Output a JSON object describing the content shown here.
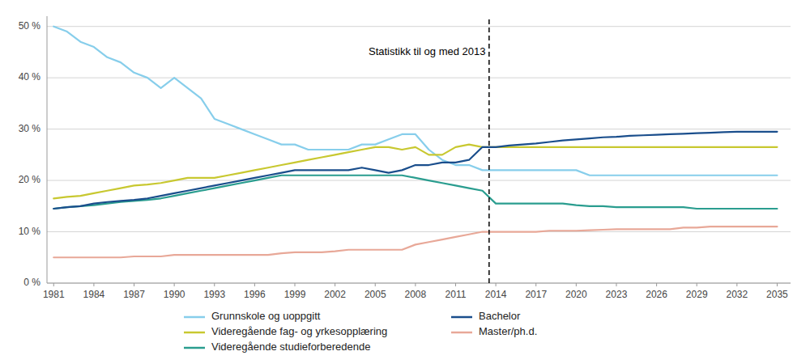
{
  "chart_data": {
    "type": "line",
    "x": [
      1981,
      1982,
      1983,
      1984,
      1985,
      1986,
      1987,
      1988,
      1989,
      1990,
      1991,
      1992,
      1993,
      1994,
      1995,
      1996,
      1997,
      1998,
      1999,
      2000,
      2001,
      2002,
      2003,
      2004,
      2005,
      2006,
      2007,
      2008,
      2009,
      2010,
      2011,
      2012,
      2013,
      2014,
      2015,
      2016,
      2017,
      2018,
      2019,
      2020,
      2021,
      2022,
      2023,
      2024,
      2025,
      2026,
      2027,
      2028,
      2029,
      2030,
      2031,
      2032,
      2033,
      2034,
      2035
    ],
    "series": [
      {
        "name": "Grunnskole og uoppgitt",
        "color": "#87CEEB",
        "values": [
          50,
          49,
          47,
          46,
          44,
          43,
          41,
          40,
          38,
          40,
          38,
          36,
          32,
          31,
          30,
          29,
          28,
          27,
          27,
          26,
          26,
          26,
          26,
          27,
          27,
          28,
          29,
          29,
          26,
          24,
          23,
          23,
          22,
          22,
          22,
          22,
          22,
          22,
          22,
          22,
          21,
          21,
          21,
          21,
          21,
          21,
          21,
          21,
          21,
          21,
          21,
          21,
          21,
          21,
          21
        ]
      },
      {
        "name": "Videregående fag- og yrkesopplæring",
        "color": "#C8C830",
        "values": [
          16.5,
          16.8,
          17,
          17.5,
          18,
          18.5,
          19,
          19.2,
          19.5,
          20,
          20.5,
          20.5,
          20.5,
          21,
          21.5,
          22,
          22.5,
          23,
          23.5,
          24,
          24.5,
          25,
          25.5,
          26,
          26.5,
          26.5,
          26,
          26.5,
          25,
          25,
          26.5,
          27,
          26.5,
          26.5,
          26.5,
          26.5,
          26.5,
          26.5,
          26.5,
          26.5,
          26.5,
          26.5,
          26.5,
          26.5,
          26.5,
          26.5,
          26.5,
          26.5,
          26.5,
          26.5,
          26.5,
          26.5,
          26.5,
          26.5,
          26.5
        ]
      },
      {
        "name": "Videregående studieforberedende",
        "color": "#2A9D8F",
        "values": [
          14.5,
          14.8,
          15,
          15.2,
          15.5,
          15.8,
          16,
          16.2,
          16.5,
          17,
          17.5,
          18,
          18.5,
          19,
          19.5,
          20,
          20.5,
          21,
          21,
          21,
          21,
          21,
          21,
          21,
          21,
          21,
          21,
          20.5,
          20,
          19.5,
          19,
          18.5,
          18,
          15.5,
          15.5,
          15.5,
          15.5,
          15.5,
          15.5,
          15.2,
          15,
          15,
          14.8,
          14.8,
          14.8,
          14.8,
          14.8,
          14.8,
          14.5,
          14.5,
          14.5,
          14.5,
          14.5,
          14.5,
          14.5
        ]
      },
      {
        "name": "Bachelor",
        "color": "#1A4E8C",
        "values": [
          14.5,
          14.8,
          15,
          15.5,
          15.8,
          16,
          16.2,
          16.5,
          17,
          17.5,
          18,
          18.5,
          19,
          19.5,
          20,
          20.5,
          21,
          21.5,
          22,
          22,
          22,
          22,
          22,
          22.5,
          22,
          21.5,
          22,
          23,
          23,
          23.5,
          23.5,
          24,
          26.5,
          26.5,
          26.8,
          27,
          27.2,
          27.5,
          27.8,
          28,
          28.2,
          28.4,
          28.5,
          28.7,
          28.8,
          28.9,
          29,
          29.1,
          29.2,
          29.3,
          29.4,
          29.5,
          29.5,
          29.5,
          29.5
        ]
      },
      {
        "name": "Master/ph.d.",
        "color": "#E8A898",
        "values": [
          5,
          5,
          5,
          5,
          5,
          5,
          5.2,
          5.2,
          5.2,
          5.5,
          5.5,
          5.5,
          5.5,
          5.5,
          5.5,
          5.5,
          5.5,
          5.8,
          6,
          6,
          6,
          6.2,
          6.5,
          6.5,
          6.5,
          6.5,
          6.5,
          7.5,
          8,
          8.5,
          9,
          9.5,
          10,
          10,
          10,
          10,
          10,
          10.2,
          10.2,
          10.2,
          10.3,
          10.4,
          10.5,
          10.5,
          10.5,
          10.5,
          10.5,
          10.8,
          10.8,
          11,
          11,
          11,
          11,
          11,
          11
        ]
      }
    ],
    "xlim": [
      1980.5,
      2036
    ],
    "xticks": [
      1981,
      1984,
      1987,
      1990,
      1993,
      1996,
      1999,
      2002,
      2005,
      2008,
      2011,
      2014,
      2017,
      2020,
      2023,
      2026,
      2029,
      2032,
      2035
    ],
    "ylim": [
      0,
      52
    ],
    "yticks": [
      {
        "value": 0,
        "label": "0 %"
      },
      {
        "value": 10,
        "label": "10 %"
      },
      {
        "value": 20,
        "label": "20 %"
      },
      {
        "value": 30,
        "label": "30 %"
      },
      {
        "value": 40,
        "label": "40 %"
      },
      {
        "value": 50,
        "label": "50 %"
      }
    ],
    "vlines": [
      2013.5
    ],
    "annotations": [
      {
        "text": "Statistikk til og med 2013",
        "x": 2004.5,
        "y": 45
      }
    ],
    "grid": true,
    "legend": "bottom"
  }
}
